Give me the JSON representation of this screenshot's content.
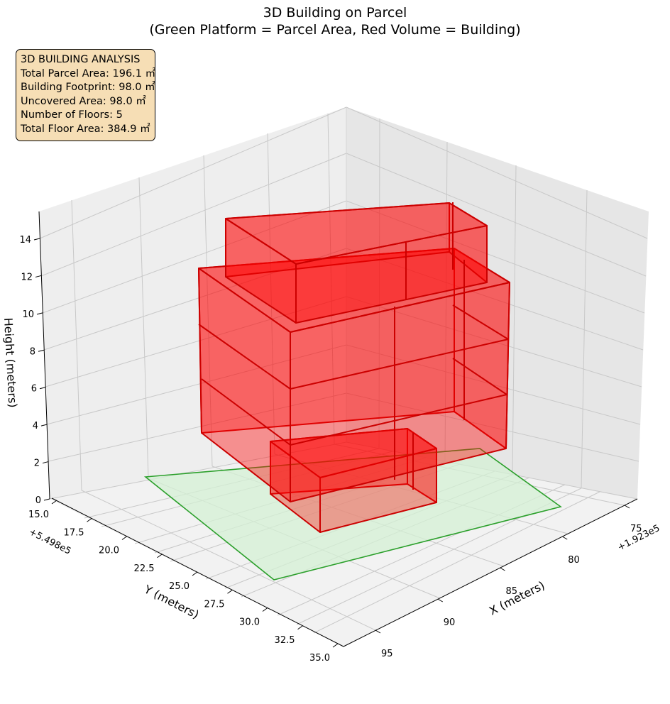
{
  "title_line1": "3D Building on Parcel",
  "title_line2": "(Green Platform = Parcel Area, Red Volume = Building)",
  "info": {
    "heading": "3D BUILDING ANALYSIS",
    "parcel": "Total Parcel Area: 196.1 ㎡",
    "footprint": "Building Footprint: 98.0 ㎡",
    "uncovered": "Uncovered Area: 98.0 ㎡",
    "floors": "Number of Floors: 5",
    "floor_area": "Total Floor Area: 384.9 ㎡"
  },
  "colors": {
    "parcel_fill": "#d4f0d4",
    "parcel_edge": "#2ca02c",
    "building_fill": "#ff0000",
    "building_edge": "#cc0000",
    "pane": "#f2f2f2",
    "grid": "#cccccc"
  },
  "chart_data": {
    "type": "3d-polygons",
    "title": "3D Building on Parcel\n(Green Platform = Parcel Area, Red Volume = Building)",
    "xlabel": "X (meters)",
    "ylabel": "Y (meters)",
    "zlabel": "Height (meters)",
    "x_offset": "+1.923e5",
    "y_offset": "+5.498e5",
    "xticks": [
      "75",
      "80",
      "85",
      "90",
      "95"
    ],
    "yticks": [
      "15.0",
      "17.5",
      "20.0",
      "22.5",
      "25.0",
      "27.5",
      "30.0",
      "32.5",
      "35.0"
    ],
    "zticks": [
      "0",
      "2",
      "4",
      "6",
      "8",
      "10",
      "12",
      "14"
    ],
    "floors": 5
  }
}
